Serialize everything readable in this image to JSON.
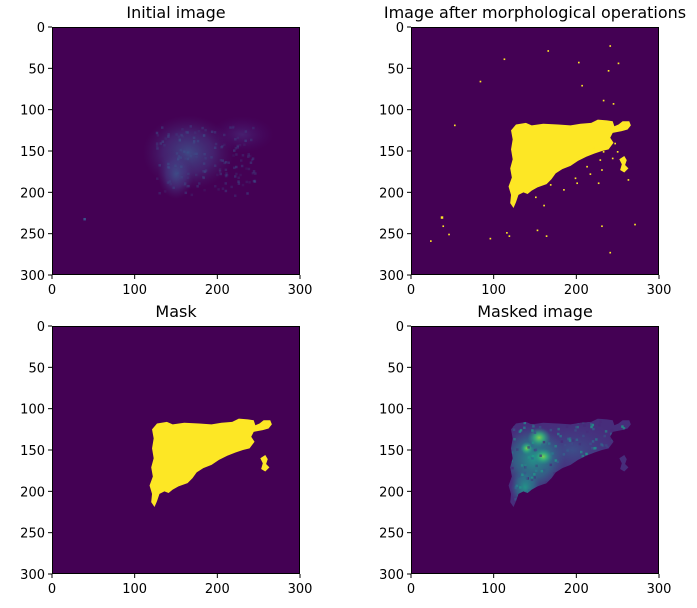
{
  "chart_data": [
    {
      "type": "heatmap",
      "title": "Initial image",
      "xlabel": "",
      "ylabel": "",
      "xlim": [
        0,
        300
      ],
      "ylim": [
        300,
        0
      ],
      "xticks": [
        "0",
        "100",
        "200",
        "300"
      ],
      "yticks": [
        "0",
        "50",
        "100",
        "150",
        "200",
        "250",
        "300"
      ],
      "grid": false,
      "colormap": "viridis",
      "background_color": "#440154",
      "content": "faint"
    },
    {
      "type": "heatmap",
      "title": "Image after morphological operations",
      "xlabel": "",
      "ylabel": "",
      "xlim": [
        0,
        300
      ],
      "ylim": [
        300,
        0
      ],
      "xticks": [
        "0",
        "100",
        "200",
        "300"
      ],
      "yticks": [
        "0",
        "50",
        "100",
        "150",
        "200",
        "250",
        "300"
      ],
      "grid": false,
      "colormap": "viridis",
      "background_color": "#440154",
      "foreground_color": "#fde725",
      "content": "binary-speckle"
    },
    {
      "type": "heatmap",
      "title": "Mask",
      "xlabel": "",
      "ylabel": "",
      "xlim": [
        0,
        300
      ],
      "ylim": [
        300,
        0
      ],
      "xticks": [
        "0",
        "100",
        "200",
        "300"
      ],
      "yticks": [
        "0",
        "50",
        "100",
        "150",
        "200",
        "250",
        "300"
      ],
      "grid": false,
      "colormap": "viridis",
      "background_color": "#440154",
      "foreground_color": "#fde725",
      "content": "binary"
    },
    {
      "type": "heatmap",
      "title": "Masked image",
      "xlabel": "",
      "ylabel": "",
      "xlim": [
        0,
        300
      ],
      "ylim": [
        300,
        0
      ],
      "xticks": [
        "0",
        "100",
        "200",
        "300"
      ],
      "yticks": [
        "0",
        "50",
        "100",
        "150",
        "200",
        "250",
        "300"
      ],
      "grid": false,
      "colormap": "viridis",
      "background_color": "#440154",
      "content": "masked"
    }
  ]
}
